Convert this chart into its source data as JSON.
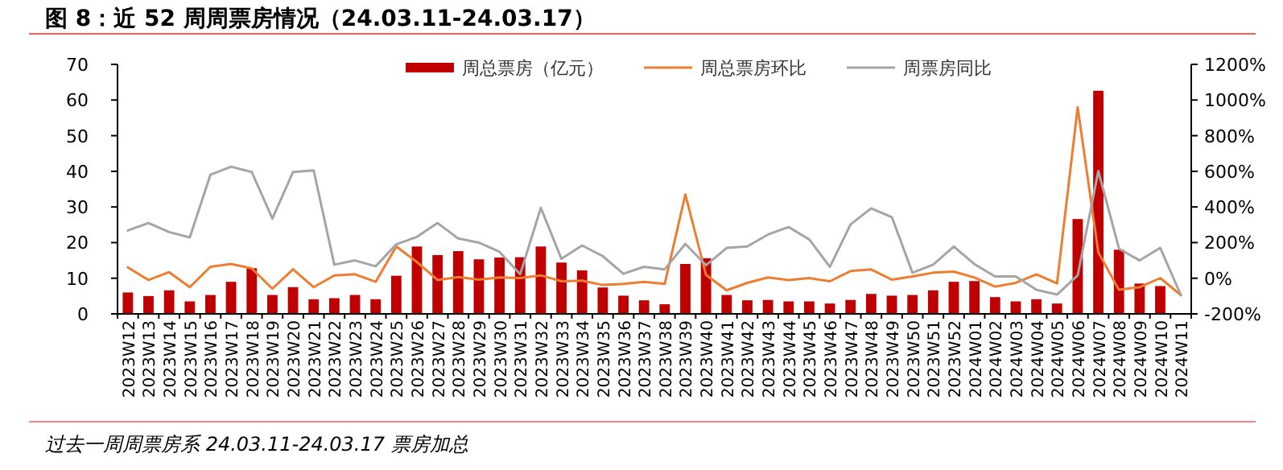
{
  "chart_data": {
    "type": "bar",
    "title": "图 8：近 52 周周票房情况（24.03.11-24.03.17）",
    "categories": [
      "2023W12",
      "2023W13",
      "2023W14",
      "2023W15",
      "2023W16",
      "2023W17",
      "2023W18",
      "2023W19",
      "2023W20",
      "2023W21",
      "2023W22",
      "2023W23",
      "2023W24",
      "2023W25",
      "2023W26",
      "2023W27",
      "2023W28",
      "2023W29",
      "2023W30",
      "2023W31",
      "2023W32",
      "2023W33",
      "2023W34",
      "2023W35",
      "2023W36",
      "2023W37",
      "2023W38",
      "2023W39",
      "2023W40",
      "2023W41",
      "2023W42",
      "2023W43",
      "2023W44",
      "2023W45",
      "2023W46",
      "2023W47",
      "2023W48",
      "2023W49",
      "2023W50",
      "2023W51",
      "2023W52",
      "2024W01",
      "2024W02",
      "2024W03",
      "2024W04",
      "2024W05",
      "2024W06",
      "2024W07",
      "2024W08",
      "2024W09",
      "2024W10",
      "2024W11"
    ],
    "series": [
      {
        "name": "周总票房（亿元）",
        "color": "#c00000",
        "values": [
          6.0,
          5.0,
          6.6,
          3.5,
          5.3,
          9.0,
          12.8,
          5.3,
          7.5,
          4.1,
          4.4,
          5.3,
          4.1,
          10.7,
          18.9,
          16.5,
          17.6,
          15.3,
          15.8,
          15.9,
          18.9,
          14.4,
          12.2,
          7.4,
          5.1,
          3.8,
          2.7,
          14.0,
          15.6,
          5.3,
          3.8,
          3.9,
          3.5,
          3.5,
          2.9,
          3.9,
          5.6,
          5.1,
          5.3,
          6.6,
          9.0,
          9.2,
          4.7,
          3.5,
          4.1,
          2.9,
          26.6,
          62.6,
          18.0,
          8.5,
          7.8,
          null
        ]
      },
      {
        "name": "周总票房环比",
        "type": "line",
        "axis": "y2",
        "color": "#ed7d31",
        "values": [
          61,
          -10,
          34,
          -50,
          64,
          80,
          55,
          -59,
          50,
          -50,
          16,
          22,
          -20,
          178,
          91,
          -10,
          7,
          -8,
          4,
          1,
          16,
          -17,
          -14,
          -38,
          -32,
          -20,
          -32,
          470,
          19,
          -68,
          -26,
          4,
          -10,
          1,
          -17,
          40,
          49,
          -8,
          10,
          31,
          37,
          4,
          -47,
          -26,
          22,
          -29,
          959,
          145,
          -65,
          -50,
          1,
          -95
        ]
      },
      {
        "name": "周票房同比",
        "type": "line",
        "axis": "y2",
        "color": "#a5a5a5",
        "values": [
          268,
          310,
          259,
          229,
          581,
          626,
          596,
          335,
          596,
          605,
          76,
          100,
          67,
          190,
          232,
          310,
          223,
          200,
          148,
          22,
          395,
          109,
          184,
          124,
          25,
          64,
          50,
          193,
          73,
          170,
          178,
          245,
          287,
          218,
          64,
          302,
          392,
          343,
          31,
          76,
          178,
          79,
          10,
          10,
          -65,
          -92,
          16,
          602,
          166,
          100,
          170,
          -95
        ]
      }
    ],
    "ylim": [
      0,
      70
    ],
    "yticks": [
      0,
      10,
      20,
      30,
      40,
      50,
      60,
      70
    ],
    "y2lim": [
      -200,
      1200
    ],
    "y2ticks": [
      {
        "value": -200,
        "label": "-200%"
      },
      {
        "value": 0,
        "label": "0%"
      },
      {
        "value": 200,
        "label": "200%"
      },
      {
        "value": 400,
        "label": "400%"
      },
      {
        "value": 600,
        "label": "600%"
      },
      {
        "value": 800,
        "label": "800%"
      },
      {
        "value": 1000,
        "label": "1000%"
      },
      {
        "value": 1200,
        "label": "1200%"
      }
    ],
    "legend": "top",
    "annotations": [
      "过去一周周票房系 24.03.11-24.03.17 票房加总"
    ]
  }
}
